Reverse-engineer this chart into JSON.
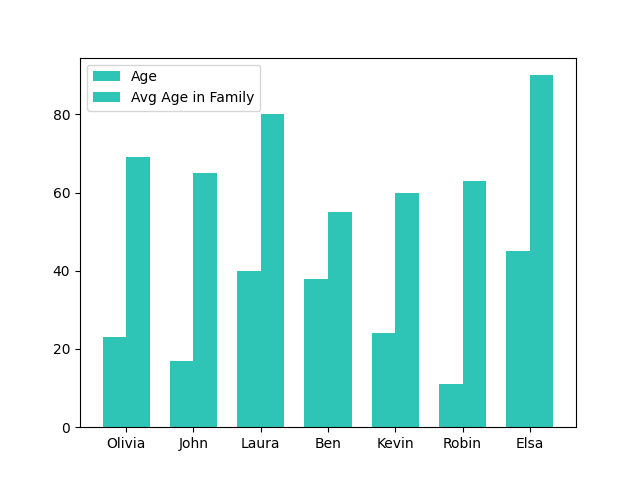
{
  "categories": [
    "Olivia",
    "John",
    "Laura",
    "Ben",
    "Kevin",
    "Robin",
    "Elsa"
  ],
  "age": [
    23,
    17,
    40,
    38,
    24,
    11,
    45
  ],
  "avg_age_in_family": [
    69,
    65,
    80,
    55,
    60,
    63,
    90
  ],
  "bar_color": "#2EC4B6",
  "legend_labels": [
    "Age",
    "Avg Age in Family"
  ],
  "bar_width": 0.35,
  "figsize": [
    6.4,
    4.8
  ],
  "dpi": 100
}
